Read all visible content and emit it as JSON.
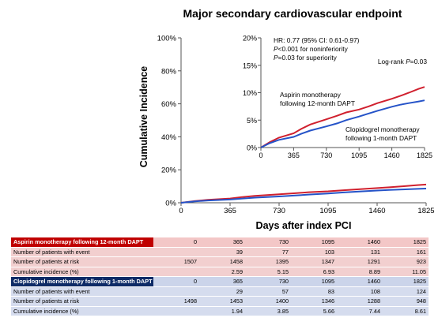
{
  "chart_data": {
    "type": "line",
    "title": "Major secondary cardiovascular endpoint",
    "xlabel": "Days after index PCI",
    "ylabel": "Cumulative Incidence",
    "x_ticks": [
      0,
      365,
      730,
      1095,
      1460,
      1825
    ],
    "xlim": [
      0,
      1825
    ],
    "main": {
      "ylim": [
        0,
        100
      ],
      "y_ticks": [
        "0%",
        "20%",
        "40%",
        "60%",
        "80%",
        "100%"
      ]
    },
    "inset": {
      "ylim": [
        0,
        20
      ],
      "y_ticks": [
        "0%",
        "5%",
        "10%",
        "15%",
        "20%"
      ],
      "stats_line1": "HR: 0.77 (95% CI: 0.61-0.97)",
      "stats_p1_prefix": "P",
      "stats_line2": "<0.001 for noninferiority",
      "stats_p2_prefix": "P",
      "stats_line3": "=0.03 for superiority",
      "logrank_text": "Log-rank ",
      "logrank_p": "P",
      "logrank_value": "=0.03",
      "label_aspirin_1": "Aspirin monotherapy",
      "label_aspirin_2": "following 12-month  DAPT",
      "label_clopidogrel_1": "Clopidogrel monotherapy",
      "label_clopidogrel_2": "following 1-month  DAPT"
    },
    "series": [
      {
        "name": "Aspirin monotherapy following 12-month DAPT",
        "color": "#d0202e",
        "x": [
          0,
          100,
          200,
          365,
          450,
          550,
          730,
          850,
          950,
          1095,
          1200,
          1300,
          1460,
          1550,
          1650,
          1760,
          1825
        ],
        "y": [
          0,
          1.0,
          1.8,
          2.59,
          3.4,
          4.2,
          5.15,
          5.8,
          6.4,
          6.93,
          7.5,
          8.1,
          8.89,
          9.4,
          10.0,
          10.7,
          11.05
        ]
      },
      {
        "name": "Clopidogrel monotherapy following 1-month DAPT",
        "color": "#2553c8",
        "x": [
          0,
          100,
          200,
          365,
          450,
          550,
          730,
          850,
          950,
          1095,
          1200,
          1300,
          1460,
          1550,
          1650,
          1760,
          1825
        ],
        "y": [
          0,
          0.8,
          1.4,
          1.94,
          2.5,
          3.1,
          3.85,
          4.4,
          5.0,
          5.66,
          6.2,
          6.7,
          7.44,
          7.8,
          8.1,
          8.4,
          8.61
        ]
      }
    ]
  },
  "risk_table": {
    "groups": [
      {
        "key": "red",
        "header": "Aspirin monotherapy following 12-month DAPT",
        "days": [
          "0",
          "365",
          "730",
          "1095",
          "1460",
          "1825"
        ],
        "rows": [
          {
            "label": "Number of patients with event",
            "values": [
              "",
              "39",
              "77",
              "103",
              "131",
              "161"
            ]
          },
          {
            "label": "Number of patients at risk",
            "values": [
              "1507",
              "1458",
              "1395",
              "1347",
              "1291",
              "923"
            ]
          },
          {
            "label": "Cumulative incidence (%)",
            "values": [
              "",
              "2.59",
              "5.15",
              "6.93",
              "8.89",
              "11.05"
            ]
          }
        ]
      },
      {
        "key": "blue",
        "header": "Clopidogrel monotherapy following 1-month DAPT",
        "days": [
          "0",
          "365",
          "730",
          "1095",
          "1460",
          "1825"
        ],
        "rows": [
          {
            "label": "Number of patients with event",
            "values": [
              "",
              "29",
              "57",
              "83",
              "108",
              "124"
            ]
          },
          {
            "label": "Number of patients at risk",
            "values": [
              "1498",
              "1453",
              "1400",
              "1346",
              "1288",
              "948"
            ]
          },
          {
            "label": "Cumulative incidence (%)",
            "values": [
              "",
              "1.94",
              "3.85",
              "5.66",
              "7.44",
              "8.61"
            ]
          }
        ]
      }
    ]
  }
}
